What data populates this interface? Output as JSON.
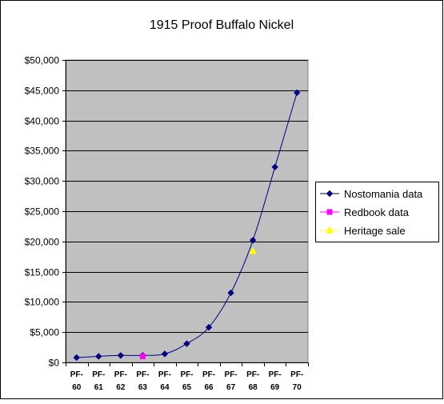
{
  "chart_data": {
    "type": "line",
    "title": "1915 Proof Buffalo Nickel",
    "xlabel": "",
    "ylabel": "",
    "categories": [
      [
        "PF-",
        "60"
      ],
      [
        "PF-",
        "61"
      ],
      [
        "PF-",
        "62"
      ],
      [
        "PF-",
        "63"
      ],
      [
        "PF-",
        "64"
      ],
      [
        "PF-",
        "65"
      ],
      [
        "PF-",
        "66"
      ],
      [
        "PF-",
        "67"
      ],
      [
        "PF-",
        "68"
      ],
      [
        "PF-",
        "69"
      ],
      [
        "PF-",
        "70"
      ]
    ],
    "ylim": [
      0,
      50000
    ],
    "yticks": [
      0,
      5000,
      10000,
      15000,
      20000,
      25000,
      30000,
      35000,
      40000,
      45000,
      50000
    ],
    "ytick_labels": [
      "$0",
      "$5,000",
      "$10,000",
      "$15,000",
      "$20,000",
      "$25,000",
      "$30,000",
      "$35,000",
      "$40,000",
      "$45,000",
      "$50,000"
    ],
    "grid": true,
    "legend_position": "right",
    "colors": {
      "plot_bg": "#c0c0c0",
      "page_bg": "#ffffff"
    },
    "series": [
      {
        "name": "Nostomania data",
        "color": "#000080",
        "marker": "diamond",
        "line": true,
        "values": [
          800,
          1000,
          1150,
          1150,
          1400,
          3100,
          5800,
          11500,
          20200,
          32300,
          44600
        ]
      },
      {
        "name": "Redbook data",
        "color": "#ff00ff",
        "marker": "square",
        "line": false,
        "values": [
          null,
          null,
          null,
          1000,
          null,
          null,
          null,
          null,
          null,
          null,
          null
        ]
      },
      {
        "name": "Heritage sale",
        "color": "#ffff00",
        "marker": "triangle",
        "line": false,
        "values": [
          null,
          null,
          null,
          null,
          null,
          null,
          null,
          null,
          18400,
          null,
          null
        ]
      }
    ]
  }
}
